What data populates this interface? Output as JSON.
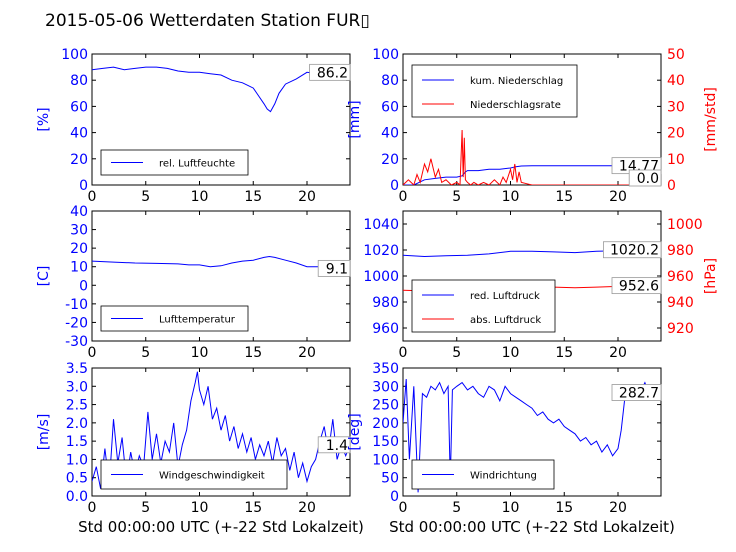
{
  "title": "2015-05-06 Wetterdaten Station FUR▯",
  "xlabel": "Std 00:00:00 UTC (+-22 Std Lokalzeit)",
  "colors": {
    "primary": "#0000ff",
    "secondary": "#ff0000",
    "axes": "#000000"
  },
  "chart_data": [
    {
      "type": "line",
      "panel": "humidity",
      "ylabel": "[%]",
      "xlim": [
        0,
        24
      ],
      "ylim": [
        0,
        100
      ],
      "xticks": [
        0,
        5,
        10,
        15,
        20
      ],
      "yticks": [
        0,
        20,
        40,
        60,
        80,
        100
      ],
      "legend": [
        "rel. Luftfeuchte"
      ],
      "legend_loc": "lower-left",
      "last_value": "86.2",
      "series": [
        {
          "name": "rel. Luftfeuchte",
          "axis": "left",
          "color": "#0000ff",
          "x": [
            0,
            1,
            2,
            3,
            4,
            5,
            6,
            7,
            8,
            9,
            10,
            11,
            12,
            13,
            14,
            14.5,
            15,
            15.5,
            16,
            16.3,
            16.6,
            17,
            17.4,
            18,
            19,
            20,
            21,
            22,
            23,
            24
          ],
          "y": [
            88,
            89,
            90,
            88,
            89,
            90,
            90,
            89,
            87,
            86,
            86,
            85,
            84,
            80,
            78,
            76,
            74,
            68,
            62,
            58,
            56,
            62,
            70,
            77,
            81,
            86,
            85,
            87,
            87,
            86
          ]
        }
      ]
    },
    {
      "type": "line",
      "panel": "precipitation",
      "ylabel": "[mm]",
      "ylabel_right": "[mm/std]",
      "xlim": [
        0,
        24
      ],
      "ylim": [
        0,
        100
      ],
      "ylim_right": [
        0,
        50
      ],
      "xticks": [
        0,
        5,
        10,
        15,
        20
      ],
      "yticks": [
        0,
        20,
        40,
        60,
        80,
        100
      ],
      "yticks_right": [
        0,
        10,
        20,
        30,
        40,
        50
      ],
      "legend": [
        "kum. Niederschlag",
        "Niederschlagsrate"
      ],
      "legend_loc": "upper-left",
      "last_values": [
        "14.77",
        "0.0"
      ],
      "series": [
        {
          "name": "kum. Niederschlag",
          "axis": "left",
          "color": "#0000ff",
          "x": [
            0,
            1,
            1.5,
            2,
            3,
            4,
            5,
            5.5,
            5.8,
            6,
            7,
            8,
            9,
            10,
            10.5,
            11,
            12,
            14,
            16,
            18,
            20,
            22,
            24
          ],
          "y": [
            0,
            0,
            2,
            4,
            5,
            6,
            6,
            7,
            10,
            11,
            11,
            12,
            12,
            13,
            14,
            14.5,
            14.7,
            14.77,
            14.77,
            14.77,
            14.77,
            14.77,
            14.77
          ]
        },
        {
          "name": "Niederschlagsrate",
          "axis": "right",
          "color": "#ff0000",
          "x": [
            0,
            0.5,
            1,
            1.3,
            1.6,
            2,
            2.3,
            2.6,
            3,
            3.3,
            3.6,
            4,
            4.5,
            5,
            5.3,
            5.5,
            5.6,
            5.7,
            5.8,
            6,
            6.3,
            6.6,
            7,
            7.5,
            8,
            8.5,
            9,
            9.3,
            9.6,
            10,
            10.2,
            10.4,
            10.6,
            10.8,
            11,
            11.5,
            12,
            13,
            14,
            16,
            18,
            20,
            22,
            24
          ],
          "y": [
            0,
            2,
            0,
            4,
            1,
            8,
            5,
            10,
            3,
            6,
            1,
            2,
            0,
            1,
            0,
            21,
            3,
            18,
            2,
            1,
            0,
            1,
            0,
            1,
            0,
            2,
            0,
            3,
            1,
            6,
            2,
            8,
            1,
            5,
            1,
            0.5,
            0,
            0,
            0,
            0,
            0,
            0,
            0,
            0
          ]
        }
      ]
    },
    {
      "type": "line",
      "panel": "temperature",
      "ylabel": "[C]",
      "xlim": [
        0,
        24
      ],
      "ylim": [
        -30,
        40
      ],
      "xticks": [
        0,
        5,
        10,
        15,
        20
      ],
      "yticks": [
        -30,
        -20,
        -10,
        0,
        10,
        20,
        30,
        40
      ],
      "legend": [
        "Lufttemperatur"
      ],
      "legend_loc": "lower-left",
      "last_value": "9.1",
      "series": [
        {
          "name": "Lufttemperatur",
          "axis": "left",
          "color": "#0000ff",
          "x": [
            0,
            2,
            4,
            6,
            8,
            9,
            10,
            11,
            12,
            13,
            14,
            15,
            16,
            16.5,
            17,
            18,
            19,
            20,
            21,
            22,
            23,
            24
          ],
          "y": [
            13,
            12.5,
            12,
            11.8,
            11.5,
            11,
            11,
            10,
            10.5,
            12,
            13,
            13.5,
            15,
            15.5,
            15,
            13.5,
            12,
            10,
            10,
            10.5,
            9.8,
            9.1
          ]
        }
      ]
    },
    {
      "type": "line",
      "panel": "pressure",
      "ylabel_right": "[hPa]",
      "xlim": [
        0,
        24
      ],
      "ylim": [
        950,
        1050
      ],
      "ylim_right": [
        910,
        1010
      ],
      "xticks": [
        0,
        5,
        10,
        15,
        20
      ],
      "yticks": [
        960,
        980,
        1000,
        1020,
        1040
      ],
      "yticks_right": [
        920,
        940,
        960,
        980,
        1000
      ],
      "legend": [
        "red. Luftdruck",
        "abs. Luftdruck"
      ],
      "legend_loc": "lower-left",
      "last_values": [
        "1020.2",
        "952.6"
      ],
      "series": [
        {
          "name": "red. Luftdruck",
          "axis": "left",
          "color": "#0000ff",
          "x": [
            0,
            2,
            4,
            6,
            8,
            10,
            12,
            14,
            16,
            18,
            20,
            22,
            24
          ],
          "y": [
            1016,
            1015,
            1015.5,
            1016,
            1017,
            1019,
            1019,
            1018.5,
            1018,
            1019,
            1019.5,
            1020,
            1020.2
          ]
        },
        {
          "name": "abs. Luftdruck",
          "axis": "right",
          "color": "#ff0000",
          "x": [
            0,
            2,
            4,
            6,
            8,
            10,
            12,
            14,
            16,
            18,
            20,
            22,
            24
          ],
          "y": [
            949,
            948.5,
            949,
            949.5,
            950.5,
            952,
            952,
            951.5,
            951,
            951.5,
            952,
            952.3,
            952.6
          ]
        }
      ]
    },
    {
      "type": "line",
      "panel": "wind_speed",
      "ylabel": "[m/s]",
      "xlim": [
        0,
        24
      ],
      "ylim": [
        0,
        3.5
      ],
      "xticks": [
        0,
        5,
        10,
        15,
        20
      ],
      "yticks": [
        0.0,
        0.5,
        1.0,
        1.5,
        2.0,
        2.5,
        3.0,
        3.5
      ],
      "legend": [
        "Windgeschwindigkeit"
      ],
      "legend_loc": "lower-left",
      "last_value": "1.4",
      "series": [
        {
          "name": "Windgeschwindigkeit",
          "axis": "left",
          "color": "#0000ff",
          "x": [
            0,
            0.4,
            0.8,
            1.2,
            1.6,
            2.0,
            2.4,
            2.8,
            3.2,
            3.6,
            4.0,
            4.4,
            4.8,
            5.2,
            5.6,
            6.0,
            6.4,
            6.8,
            7.2,
            7.6,
            8.0,
            8.4,
            8.8,
            9.2,
            9.6,
            9.8,
            10.0,
            10.4,
            10.8,
            11.2,
            11.6,
            12.0,
            12.4,
            12.8,
            13.2,
            13.6,
            14.0,
            14.4,
            14.8,
            15.2,
            15.6,
            16.0,
            16.4,
            16.8,
            17.2,
            17.6,
            18.0,
            18.4,
            18.8,
            19.2,
            19.6,
            20.0,
            20.4,
            20.8,
            21.2,
            21.6,
            22.0,
            22.4,
            22.8,
            23.2,
            23.6,
            24.0
          ],
          "y": [
            0.4,
            0.8,
            0.2,
            1.3,
            0.3,
            2.1,
            0.9,
            1.6,
            0.4,
            1.2,
            0.6,
            1.1,
            0.8,
            2.3,
            1.0,
            1.7,
            0.9,
            1.5,
            1.2,
            2.0,
            0.8,
            1.4,
            1.8,
            2.6,
            3.1,
            3.4,
            2.9,
            2.5,
            3.0,
            2.1,
            2.4,
            1.8,
            2.2,
            1.5,
            1.9,
            1.3,
            1.7,
            1.2,
            1.6,
            1.0,
            1.4,
            1.1,
            1.5,
            0.9,
            1.6,
            1.1,
            1.3,
            0.7,
            1.2,
            0.5,
            0.9,
            0.4,
            0.8,
            1.0,
            1.5,
            1.9,
            1.2,
            2.1,
            1.0,
            1.4,
            1.1,
            1.4
          ]
        }
      ]
    },
    {
      "type": "line",
      "panel": "wind_direction",
      "ylabel": "[deg]",
      "xlim": [
        0,
        24
      ],
      "ylim": [
        0,
        350
      ],
      "xticks": [
        0,
        5,
        10,
        15,
        20
      ],
      "yticks": [
        0,
        50,
        100,
        150,
        200,
        250,
        300,
        350
      ],
      "legend": [
        "Windrichtung"
      ],
      "legend_loc": "lower-left",
      "last_value": "282.7",
      "series": [
        {
          "name": "Windrichtung",
          "axis": "left",
          "color": "#0000ff",
          "x": [
            0,
            0.3,
            0.6,
            1.0,
            1.4,
            1.8,
            2.2,
            2.6,
            3.0,
            3.4,
            3.8,
            4.2,
            4.4,
            4.6,
            5.0,
            5.5,
            6.0,
            6.5,
            7.0,
            7.5,
            8.0,
            8.5,
            9.0,
            9.5,
            10.0,
            10.5,
            11.0,
            11.5,
            12.0,
            12.5,
            13.0,
            13.5,
            14.0,
            14.5,
            15.0,
            15.5,
            16.0,
            16.5,
            17.0,
            17.5,
            18.0,
            18.5,
            19.0,
            19.5,
            20.0,
            20.3,
            20.6,
            21.0,
            21.5,
            22.0,
            22.5,
            23.0,
            23.5,
            24.0
          ],
          "y": [
            200,
            320,
            100,
            300,
            10,
            280,
            270,
            300,
            290,
            310,
            280,
            300,
            40,
            290,
            300,
            310,
            290,
            300,
            280,
            270,
            300,
            290,
            260,
            300,
            280,
            270,
            260,
            250,
            240,
            220,
            230,
            210,
            200,
            210,
            190,
            180,
            170,
            150,
            160,
            140,
            150,
            120,
            140,
            110,
            130,
            180,
            260,
            290,
            300,
            280,
            310,
            270,
            300,
            283
          ]
        }
      ]
    }
  ]
}
